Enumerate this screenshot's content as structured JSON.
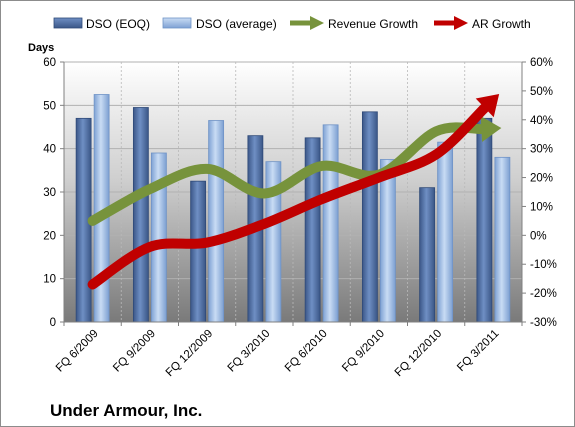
{
  "chart_data": {
    "type": "bar",
    "title": "",
    "company_label": "Under Armour, Inc.",
    "y_left_title": "Days",
    "y_left_range": [
      0,
      60
    ],
    "y_left_ticks": [
      "0",
      "10",
      "20",
      "30",
      "40",
      "50",
      "60"
    ],
    "y_right_range": [
      -30,
      60
    ],
    "y_right_ticks": [
      "-30%",
      "-20%",
      "-10%",
      "0%",
      "10%",
      "20%",
      "30%",
      "40%",
      "50%",
      "60%"
    ],
    "categories": [
      "FQ 6/2009",
      "FQ 9/2009",
      "FQ 12/2009",
      "FQ 3/2010",
      "FQ 6/2010",
      "FQ 9/2010",
      "FQ 12/2010",
      "FQ 3/2011"
    ],
    "series": [
      {
        "name": "DSO (EOQ)",
        "type": "bar",
        "axis": "left",
        "color": "#4f6fa4",
        "values": [
          47,
          49.5,
          32.5,
          43,
          42.5,
          48.5,
          31,
          47
        ]
      },
      {
        "name": "DSO (average)",
        "type": "bar",
        "axis": "left",
        "color": "#9dbde6",
        "values": [
          52.5,
          39,
          46.5,
          37,
          45.5,
          37.5,
          41.5,
          38
        ]
      },
      {
        "name": "Revenue Growth",
        "type": "line",
        "axis": "right",
        "unit": "%",
        "color": "#77933c",
        "values": [
          5,
          16,
          23,
          14.5,
          24,
          21,
          36,
          37
        ]
      },
      {
        "name": "AR Growth",
        "type": "line",
        "axis": "right",
        "unit": "%",
        "color": "#c00000",
        "values": [
          -17,
          -4,
          -2.5,
          4,
          12.5,
          20,
          28,
          47
        ]
      }
    ],
    "grid": true,
    "legend_position": "top"
  }
}
